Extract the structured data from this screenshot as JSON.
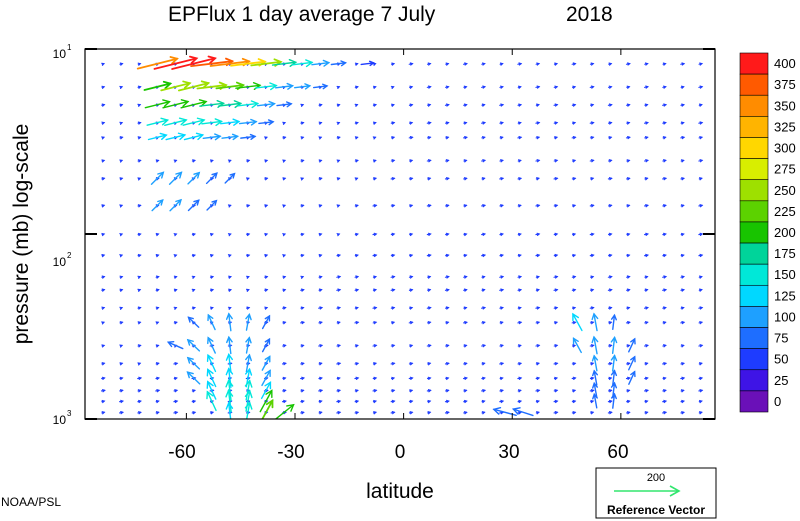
{
  "chart_data": {
    "type": "quiver",
    "title_left": "EPFlux  1 day average  7 July",
    "title_year": "2018",
    "xlabel": "latitude",
    "ylabel": "pressure (mb)  log-scale",
    "x_ticks": [
      "-60",
      "-30",
      "0",
      "30",
      "60"
    ],
    "x_tick_values": [
      -60,
      -30,
      0,
      30,
      60
    ],
    "xlim": [
      -88,
      86
    ],
    "ylim": [
      1000,
      10
    ],
    "y_scale": "log",
    "y_ticks": [
      {
        "value": 10,
        "base": "10",
        "exp": "1"
      },
      {
        "value": 100,
        "base": "10",
        "exp": "2"
      },
      {
        "value": 1000,
        "base": "10",
        "exp": "3"
      }
    ],
    "grid": false,
    "colorbar": {
      "labels": [
        "400",
        "375",
        "350",
        "325",
        "300",
        "275",
        "250",
        "225",
        "200",
        "175",
        "150",
        "125",
        "100",
        "75",
        "50",
        "25",
        "0"
      ],
      "colors": [
        "#ff1a1a",
        "#ff5a00",
        "#ff8c00",
        "#ffb400",
        "#ffd700",
        "#d8ee00",
        "#9ee000",
        "#5cd200",
        "#18c400",
        "#00d49a",
        "#00e8d8",
        "#00d8ff",
        "#1ea0ff",
        "#1e6eff",
        "#1e3cff",
        "#3e14e6",
        "#6a10b8"
      ]
    },
    "reference_vector": {
      "value": "200",
      "label": "Reference Vector",
      "color": "#32e66e"
    },
    "vectors": [
      {
        "lat": -68,
        "p": 12,
        "mag": 360
      },
      {
        "lat": -63,
        "p": 12,
        "mag": 390
      },
      {
        "lat": -58,
        "p": 12,
        "mag": 400
      },
      {
        "lat": -53,
        "p": 12,
        "mag": 380
      },
      {
        "lat": -48,
        "p": 12,
        "mag": 350
      },
      {
        "lat": -43,
        "p": 12,
        "mag": 300
      },
      {
        "lat": -38,
        "p": 12,
        "mag": 250
      },
      {
        "lat": -33,
        "p": 12,
        "mag": 180
      },
      {
        "lat": -28,
        "p": 12,
        "mag": 140
      },
      {
        "lat": -23,
        "p": 12,
        "mag": 110
      },
      {
        "lat": -18,
        "p": 12,
        "mag": 80
      },
      {
        "lat": -10,
        "p": 12,
        "mag": 60
      },
      {
        "lat": -68,
        "p": 16,
        "mag": 210
      },
      {
        "lat": -63,
        "p": 16,
        "mag": 240
      },
      {
        "lat": -58,
        "p": 16,
        "mag": 250
      },
      {
        "lat": -53,
        "p": 16,
        "mag": 240
      },
      {
        "lat": -48,
        "p": 16,
        "mag": 220
      },
      {
        "lat": -43,
        "p": 16,
        "mag": 190
      },
      {
        "lat": -38,
        "p": 16,
        "mag": 150
      },
      {
        "lat": -33,
        "p": 16,
        "mag": 110
      },
      {
        "lat": -28,
        "p": 16,
        "mag": 90
      },
      {
        "lat": -23,
        "p": 16,
        "mag": 70
      },
      {
        "lat": -68,
        "p": 20,
        "mag": 190
      },
      {
        "lat": -63,
        "p": 20,
        "mag": 200
      },
      {
        "lat": -58,
        "p": 20,
        "mag": 200
      },
      {
        "lat": -53,
        "p": 20,
        "mag": 185
      },
      {
        "lat": -48,
        "p": 20,
        "mag": 165
      },
      {
        "lat": -43,
        "p": 20,
        "mag": 140
      },
      {
        "lat": -38,
        "p": 20,
        "mag": 110
      },
      {
        "lat": -33,
        "p": 20,
        "mag": 80
      },
      {
        "lat": -68,
        "p": 25,
        "mag": 150
      },
      {
        "lat": -63,
        "p": 25,
        "mag": 160
      },
      {
        "lat": -58,
        "p": 25,
        "mag": 155
      },
      {
        "lat": -53,
        "p": 25,
        "mag": 140
      },
      {
        "lat": -48,
        "p": 25,
        "mag": 125
      },
      {
        "lat": -43,
        "p": 25,
        "mag": 105
      },
      {
        "lat": -38,
        "p": 25,
        "mag": 80
      },
      {
        "lat": -68,
        "p": 30,
        "mag": 120
      },
      {
        "lat": -63,
        "p": 30,
        "mag": 130
      },
      {
        "lat": -58,
        "p": 30,
        "mag": 125
      },
      {
        "lat": -53,
        "p": 30,
        "mag": 110
      },
      {
        "lat": -48,
        "p": 30,
        "mag": 95
      },
      {
        "lat": -43,
        "p": 30,
        "mag": 80
      },
      {
        "lat": -68,
        "p": 50,
        "mag": 110
      },
      {
        "lat": -63,
        "p": 50,
        "mag": 110
      },
      {
        "lat": -58,
        "p": 50,
        "mag": 100
      },
      {
        "lat": -53,
        "p": 50,
        "mag": 85
      },
      {
        "lat": -48,
        "p": 50,
        "mag": 70
      },
      {
        "lat": -68,
        "p": 70,
        "mag": 90
      },
      {
        "lat": -63,
        "p": 70,
        "mag": 95
      },
      {
        "lat": -58,
        "p": 70,
        "mag": 85
      },
      {
        "lat": -53,
        "p": 70,
        "mag": 70
      },
      {
        "lat": -58,
        "p": 300,
        "mag": 80
      },
      {
        "lat": -53,
        "p": 300,
        "mag": 100
      },
      {
        "lat": -48,
        "p": 300,
        "mag": 110
      },
      {
        "lat": -43,
        "p": 300,
        "mag": 100
      },
      {
        "lat": -38,
        "p": 300,
        "mag": 80
      },
      {
        "lat": -63,
        "p": 400,
        "mag": 80
      },
      {
        "lat": -58,
        "p": 400,
        "mag": 100
      },
      {
        "lat": -53,
        "p": 400,
        "mag": 110
      },
      {
        "lat": -48,
        "p": 400,
        "mag": 105
      },
      {
        "lat": -43,
        "p": 400,
        "mag": 95
      },
      {
        "lat": -38,
        "p": 400,
        "mag": 80
      },
      {
        "lat": -58,
        "p": 500,
        "mag": 100
      },
      {
        "lat": -53,
        "p": 500,
        "mag": 120
      },
      {
        "lat": -48,
        "p": 500,
        "mag": 120
      },
      {
        "lat": -43,
        "p": 500,
        "mag": 110
      },
      {
        "lat": -38,
        "p": 500,
        "mag": 95
      },
      {
        "lat": -58,
        "p": 600,
        "mag": 110
      },
      {
        "lat": -53,
        "p": 600,
        "mag": 130
      },
      {
        "lat": -48,
        "p": 600,
        "mag": 130
      },
      {
        "lat": -43,
        "p": 600,
        "mag": 120
      },
      {
        "lat": -38,
        "p": 600,
        "mag": 110
      },
      {
        "lat": -53,
        "p": 700,
        "mag": 135
      },
      {
        "lat": -48,
        "p": 700,
        "mag": 145
      },
      {
        "lat": -43,
        "p": 700,
        "mag": 140
      },
      {
        "lat": -38,
        "p": 700,
        "mag": 125
      },
      {
        "lat": -53,
        "p": 800,
        "mag": 150
      },
      {
        "lat": -48,
        "p": 800,
        "mag": 160
      },
      {
        "lat": -43,
        "p": 800,
        "mag": 150
      },
      {
        "lat": -38,
        "p": 800,
        "mag": 190
      },
      {
        "lat": -48,
        "p": 920,
        "mag": 130
      },
      {
        "lat": -43,
        "p": 920,
        "mag": 140
      },
      {
        "lat": -38,
        "p": 920,
        "mag": 220
      },
      {
        "lat": -33,
        "p": 920,
        "mag": 190
      },
      {
        "lat": 48,
        "p": 300,
        "mag": 130
      },
      {
        "lat": 53,
        "p": 300,
        "mag": 110
      },
      {
        "lat": 58,
        "p": 300,
        "mag": 80
      },
      {
        "lat": 48,
        "p": 400,
        "mag": 100
      },
      {
        "lat": 53,
        "p": 400,
        "mag": 110
      },
      {
        "lat": 58,
        "p": 400,
        "mag": 100
      },
      {
        "lat": 63,
        "p": 400,
        "mag": 80
      },
      {
        "lat": 53,
        "p": 500,
        "mag": 90
      },
      {
        "lat": 58,
        "p": 500,
        "mag": 95
      },
      {
        "lat": 63,
        "p": 500,
        "mag": 80
      },
      {
        "lat": 53,
        "p": 600,
        "mag": 80
      },
      {
        "lat": 58,
        "p": 600,
        "mag": 85
      },
      {
        "lat": 63,
        "p": 600,
        "mag": 75
      },
      {
        "lat": 53,
        "p": 700,
        "mag": 80
      },
      {
        "lat": 58,
        "p": 700,
        "mag": 85
      },
      {
        "lat": 53,
        "p": 800,
        "mag": 75
      },
      {
        "lat": 58,
        "p": 800,
        "mag": 80
      },
      {
        "lat": 28,
        "p": 920,
        "mag": 70
      },
      {
        "lat": 33,
        "p": 920,
        "mag": 80
      }
    ]
  },
  "credit": "NOAA/PSL"
}
